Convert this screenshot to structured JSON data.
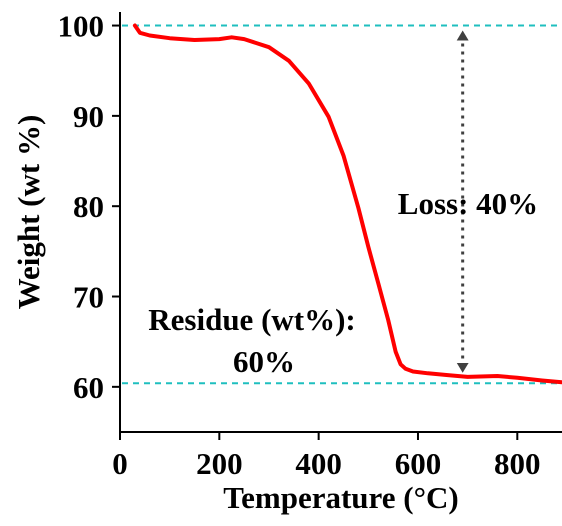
{
  "chart_data": {
    "type": "line",
    "xlabel": "Temperature (°C)",
    "ylabel": "Weight (wt %)",
    "xlim": [
      0,
      890
    ],
    "ylim": [
      55,
      101.5
    ],
    "xticks": [
      0,
      200,
      400,
      600,
      800
    ],
    "yticks": [
      60,
      70,
      80,
      90,
      100
    ],
    "xtick_labels": [
      "0",
      "200",
      "400",
      "600",
      "800"
    ],
    "ytick_labels": [
      "60",
      "70",
      "80",
      "90",
      "100"
    ],
    "grid": false,
    "series": [
      {
        "color": "#ff0000",
        "x": [
          30,
          40,
          60,
          100,
          150,
          200,
          225,
          250,
          300,
          340,
          380,
          420,
          450,
          480,
          500,
          520,
          540,
          555,
          565,
          575,
          590,
          620,
          660,
          700,
          760,
          800,
          850,
          890
        ],
        "y": [
          100,
          99.2,
          98.9,
          98.6,
          98.4,
          98.5,
          98.7,
          98.5,
          97.6,
          96.1,
          93.6,
          89.9,
          85.6,
          79.8,
          75.5,
          71.5,
          67.4,
          63.9,
          62.5,
          62.0,
          61.7,
          61.5,
          61.3,
          61.1,
          61.2,
          61.0,
          60.7,
          60.5
        ]
      }
    ],
    "reference_lines": [
      {
        "axis": "y",
        "value": 100,
        "color": "#1fbfbf",
        "style": "dashed"
      },
      {
        "axis": "y",
        "value": 60.4,
        "color": "#1fbfbf",
        "style": "dashed"
      }
    ],
    "annotations": {
      "loss_arrow": {
        "x": 690,
        "y_top": 100,
        "y_bottom": 61.0,
        "color": "#404040",
        "style": "dotted",
        "label": "Loss: 40%"
      },
      "residue_label_line1": "Residue (wt%):",
      "residue_label_line2": "60%"
    }
  }
}
